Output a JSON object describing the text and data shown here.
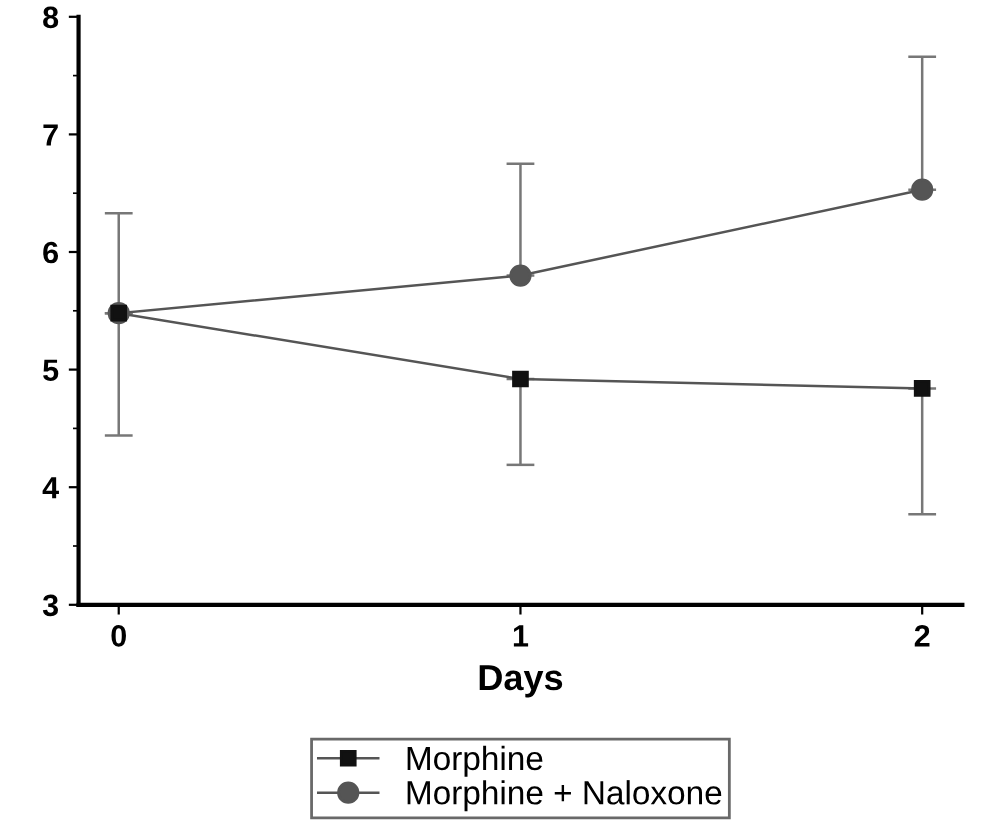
{
  "chart_data": {
    "type": "line",
    "xlabel": "Days",
    "x": [
      0,
      1,
      2
    ],
    "series": [
      {
        "name": "Morphine",
        "color": "#111111",
        "marker": "square",
        "values": [
          5.48,
          4.92,
          4.84
        ],
        "errors": [
          [
            4.44,
            5.48
          ],
          [
            4.19,
            4.92
          ],
          [
            3.77,
            4.84
          ]
        ]
      },
      {
        "name": "Morphine + Naloxone",
        "color": "#555555",
        "marker": "circle",
        "values": [
          5.48,
          5.8,
          6.53
        ],
        "errors": [
          [
            5.48,
            6.33
          ],
          [
            5.8,
            6.75
          ],
          [
            6.53,
            7.66
          ]
        ]
      }
    ],
    "xlim": [
      -0.1,
      2.1
    ],
    "xticks": [
      0,
      1,
      2
    ],
    "ylim": [
      3,
      8
    ],
    "yticks": [
      3,
      4,
      5,
      6,
      7,
      8
    ],
    "grid": false,
    "legend": "bottom"
  }
}
